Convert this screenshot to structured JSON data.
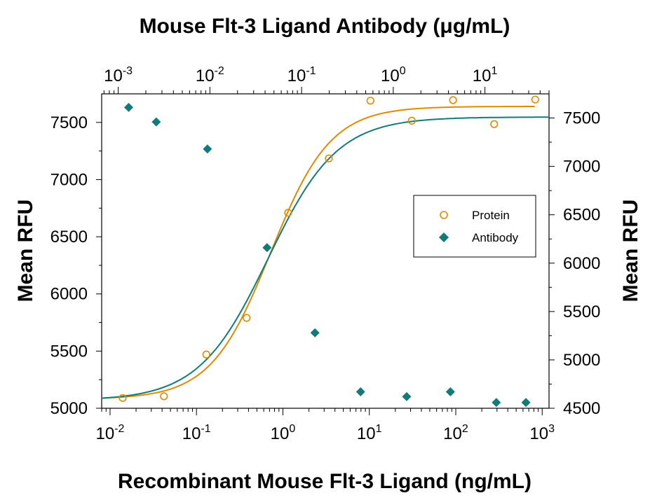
{
  "chart_data": {
    "type": "scatter",
    "title": "Mouse Flt-3 Ligand Antibody (μg/mL)",
    "xlabel": "Recombinant Mouse Flt-3 Ligand (ng/mL)",
    "ylabel_left": "Mean RFU",
    "ylabel_right": "Mean RFU",
    "x_scale": "log",
    "xlim": [
      0.008,
      1200
    ],
    "x_ticks": [
      {
        "base": "10",
        "exp": "-2",
        "value": 0.01
      },
      {
        "base": "10",
        "exp": "-1",
        "value": 0.1
      },
      {
        "base": "10",
        "exp": "0",
        "value": 1
      },
      {
        "base": "10",
        "exp": "1",
        "value": 10
      },
      {
        "base": "10",
        "exp": "2",
        "value": 100
      },
      {
        "base": "10",
        "exp": "3",
        "value": 1000
      }
    ],
    "x2_scale": "log",
    "x2lim": [
      0.00066,
      50
    ],
    "x2_ticks": [
      {
        "base": "10",
        "exp": "-3",
        "value": 0.001
      },
      {
        "base": "10",
        "exp": "-2",
        "value": 0.01
      },
      {
        "base": "10",
        "exp": "-1",
        "value": 0.1
      },
      {
        "base": "10",
        "exp": "0",
        "value": 1
      },
      {
        "base": "10",
        "exp": "1",
        "value": 10
      }
    ],
    "ylim_left": [
      5000,
      7750
    ],
    "y_ticks_left": [
      "5000",
      "5500",
      "6000",
      "6500",
      "7000",
      "7500"
    ],
    "ylim_right": [
      4500,
      7750
    ],
    "y_ticks_right": [
      "4500",
      "5000",
      "5500",
      "6000",
      "6500",
      "7000",
      "7500"
    ],
    "grid": false,
    "legend_position": "right",
    "series": [
      {
        "name": "Protein",
        "axis": "left-bottom",
        "color": "#e08a00",
        "marker": "open-circle",
        "x": [
          0.014,
          0.042,
          0.13,
          0.38,
          1.15,
          3.4,
          10.3,
          31,
          93,
          278,
          830
        ],
        "y": [
          5090,
          5105,
          5470,
          5790,
          6710,
          7185,
          7690,
          7515,
          7695,
          7485,
          7700
        ],
        "fit": {
          "bottom": 5080,
          "top": 7640,
          "ec50": 0.72,
          "hill": 1.25
        }
      },
      {
        "name": "Antibody",
        "axis": "right-top",
        "color": "#137a7a",
        "marker": "filled-diamond",
        "x": [
          0.0013,
          0.0026,
          0.0094,
          0.042,
          0.14,
          0.44,
          1.4,
          4.2,
          13.3,
          28
        ],
        "y": [
          7610,
          7460,
          7180,
          6160,
          5280,
          4670,
          4620,
          4670,
          4560,
          4560
        ],
        "fit": {
          "bottom": 4580,
          "top": 7510,
          "ec50": 0.043,
          "hill": 1.15
        }
      }
    ]
  }
}
